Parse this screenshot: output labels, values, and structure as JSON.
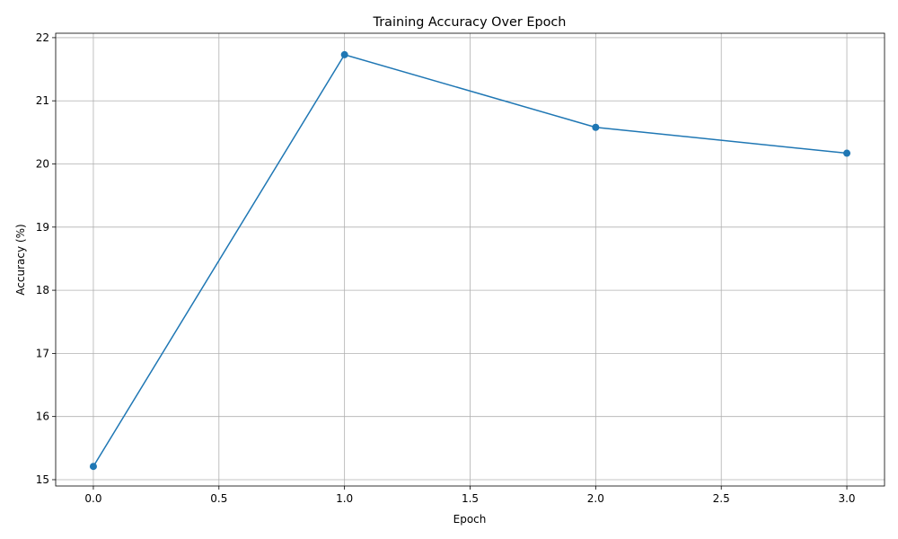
{
  "chart_data": {
    "type": "line",
    "title": "Training Accuracy Over Epoch",
    "xlabel": "Epoch",
    "ylabel": "Accuracy (%)",
    "x": [
      0,
      1,
      2,
      3
    ],
    "series": [
      {
        "color": "#1f77b4",
        "values": [
          15.21,
          21.73,
          20.58,
          20.17
        ]
      }
    ],
    "xlim": [
      -0.15,
      3.15
    ],
    "xticks": [
      {
        "value": 0,
        "label": "0.0"
      },
      0.5,
      {
        "value": 1,
        "label": "1.0"
      },
      1.5,
      {
        "value": 2,
        "label": "2.0"
      },
      2.5,
      {
        "value": 3,
        "label": "3.0"
      }
    ],
    "ylim": [
      14.9,
      22.07
    ],
    "yticks": [
      15,
      16,
      17,
      18,
      19,
      20,
      21,
      22
    ],
    "grid": true
  }
}
